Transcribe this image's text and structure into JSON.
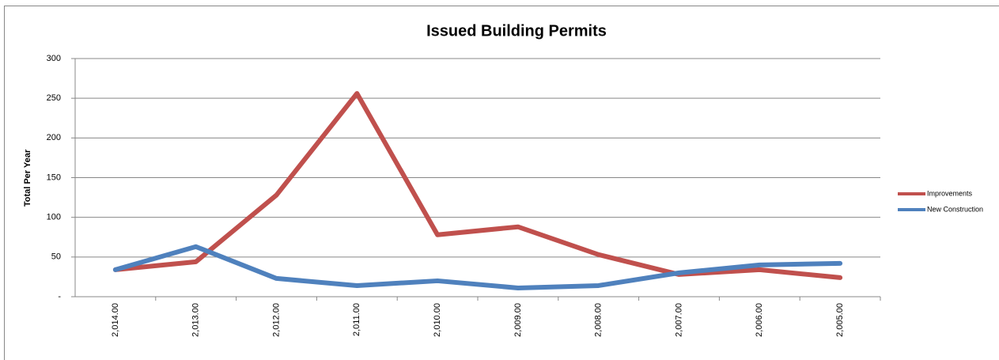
{
  "chart_data": {
    "type": "line",
    "title": "Issued Building Permits",
    "y_label": "Total Per Year",
    "categories": [
      "2,014.00",
      "2,013.00",
      "2,012.00",
      "2,011.00",
      "2,010.00",
      "2,009.00",
      "2,008.00",
      "2,007.00",
      "2,006.00",
      "2,005.00"
    ],
    "series": [
      {
        "name": "Improvements",
        "color": "#c0504d",
        "values": [
          34,
          44,
          128,
          256,
          78,
          88,
          53,
          28,
          34,
          24
        ]
      },
      {
        "name": "New Construction",
        "color": "#4f81bd",
        "values": [
          34,
          63,
          23,
          14,
          20,
          11,
          14,
          30,
          40,
          42
        ]
      }
    ],
    "ylim": [
      0,
      300
    ],
    "yticks": [
      {
        "value": 0,
        "label": "-"
      },
      50,
      100,
      150,
      200,
      250,
      300
    ],
    "grid": true,
    "legend": "right"
  }
}
